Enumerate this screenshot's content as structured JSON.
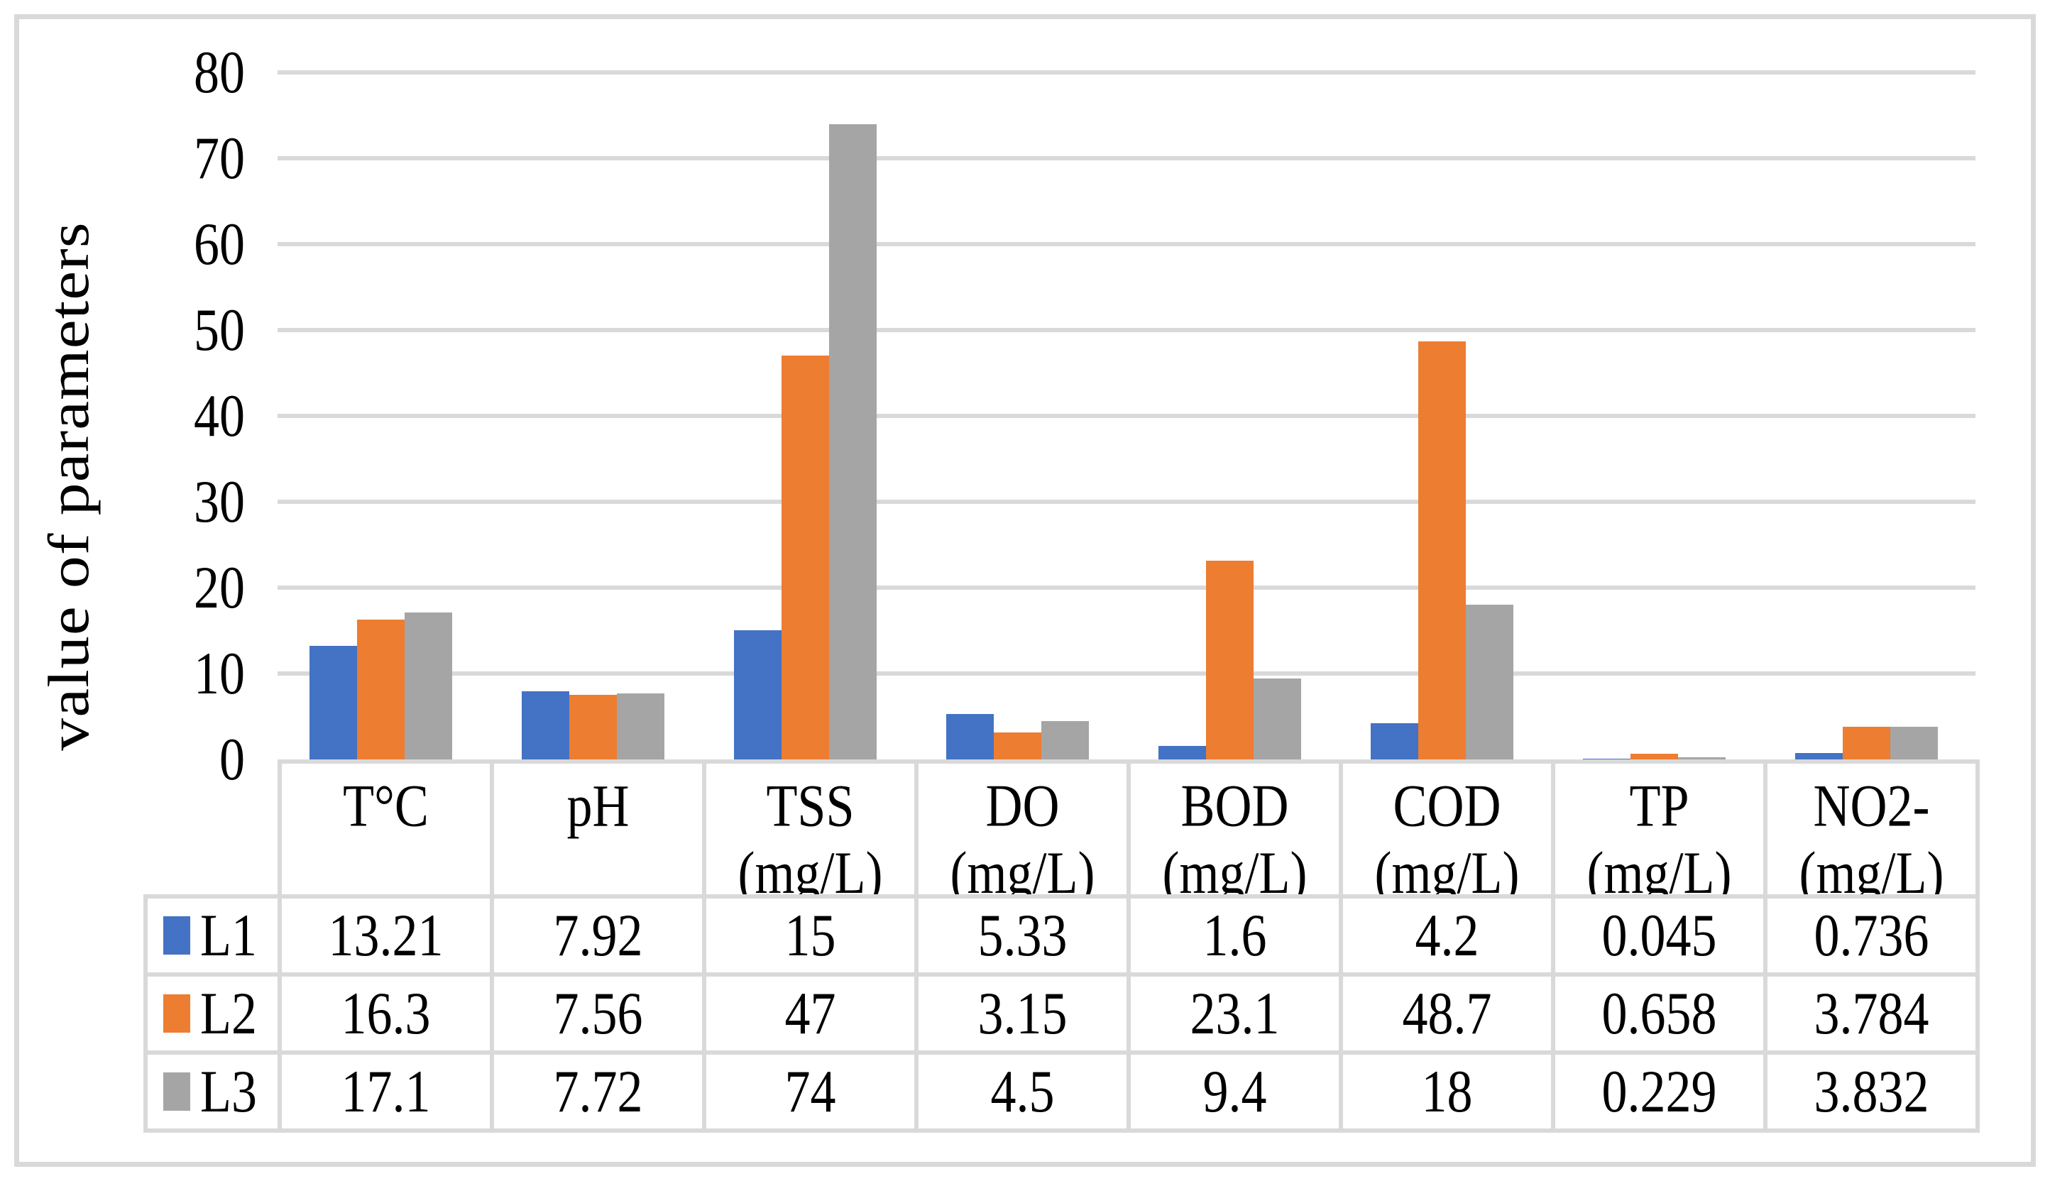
{
  "figure": {
    "frame_color": "#d9d9d9",
    "background": "#ffffff",
    "gridline_color": "#d9d9d9",
    "table_border_color": "#d9d9d9"
  },
  "chart_data": {
    "type": "bar",
    "title": "",
    "xlabel": "",
    "ylabel": "value of parameters",
    "ylim": [
      0,
      80
    ],
    "yticks": [
      0,
      10,
      20,
      30,
      40,
      50,
      60,
      70,
      80
    ],
    "grid": true,
    "legend_position": "data-table-left-column",
    "categories": [
      "T°C",
      "pH",
      "TSS (mg/L)",
      "DO (mg/L)",
      "BOD (mg/L)",
      "COD (mg/L)",
      "TP (mg/L)",
      "NO2- (mg/L)"
    ],
    "category_header_lines": [
      [
        "T°C"
      ],
      [
        "pH"
      ],
      [
        "TSS",
        "(mg/L)"
      ],
      [
        "DO",
        "(mg/L)"
      ],
      [
        "BOD",
        "(mg/L)"
      ],
      [
        "COD",
        "(mg/L)"
      ],
      [
        "TP",
        "(mg/L)"
      ],
      [
        "NO2-",
        "(mg/L)"
      ]
    ],
    "series": [
      {
        "name": "L1",
        "color": "#4472C4",
        "values": [
          13.21,
          7.92,
          15,
          5.33,
          1.6,
          4.2,
          0.045,
          0.736
        ]
      },
      {
        "name": "L2",
        "color": "#ED7D31",
        "values": [
          16.3,
          7.56,
          47,
          3.15,
          23.1,
          48.7,
          0.658,
          3.784
        ]
      },
      {
        "name": "L3",
        "color": "#A5A5A5",
        "values": [
          17.1,
          7.72,
          74,
          4.5,
          9.4,
          18,
          0.229,
          3.832
        ]
      }
    ]
  }
}
